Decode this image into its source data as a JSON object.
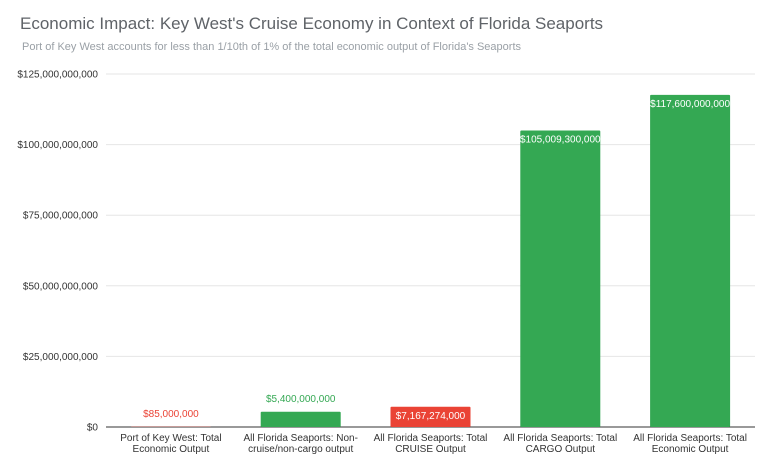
{
  "title": "Economic Impact: Key West's Cruise Economy in Context of Florida Seaports",
  "subtitle": "Port of Key West accounts for less than 1/10th of 1% of the total economic output of Florida's Seaports",
  "colors": {
    "green": "#34a853",
    "red": "#ea4335",
    "grid": "#e6e6e6",
    "axis": "#333333"
  },
  "chart_data": {
    "type": "bar",
    "title": "Economic Impact: Key West's Cruise Economy in Context of Florida Seaports",
    "subtitle": "Port of Key West accounts for less than 1/10th of 1% of the total economic output of Florida's Seaports",
    "categories": [
      [
        "Port of Key West: Total",
        "Economic Output"
      ],
      [
        "All Florida Seaports: Non-",
        "cruise/non-cargo output"
      ],
      [
        "All Florida Seaports: Total",
        "CRUISE Output"
      ],
      [
        "All Florida Seaports: Total",
        "CARGO Output"
      ],
      [
        "All Florida Seaports: Total",
        "Economic Output"
      ]
    ],
    "values": [
      85000000,
      5400000000,
      7167274000,
      105009300000,
      117600000000
    ],
    "data_labels": [
      "$85,000,000",
      "$5,400,000,000",
      "$7,167,274,000",
      "$105,009,300,000",
      "$117,600,000,000"
    ],
    "bar_colors": [
      "#ea4335",
      "#34a853",
      "#ea4335",
      "#34a853",
      "#34a853"
    ],
    "ylim": [
      0,
      125000000000
    ],
    "yticks": [
      0,
      25000000000,
      50000000000,
      75000000000,
      100000000000,
      125000000000
    ],
    "ytick_labels": [
      "$0",
      "$25,000,000,000",
      "$50,000,000,000",
      "$75,000,000,000",
      "$100,000,000,000",
      "$125,000,000,000"
    ],
    "xlabel": "",
    "ylabel": "",
    "grid": true,
    "legend": "none"
  }
}
